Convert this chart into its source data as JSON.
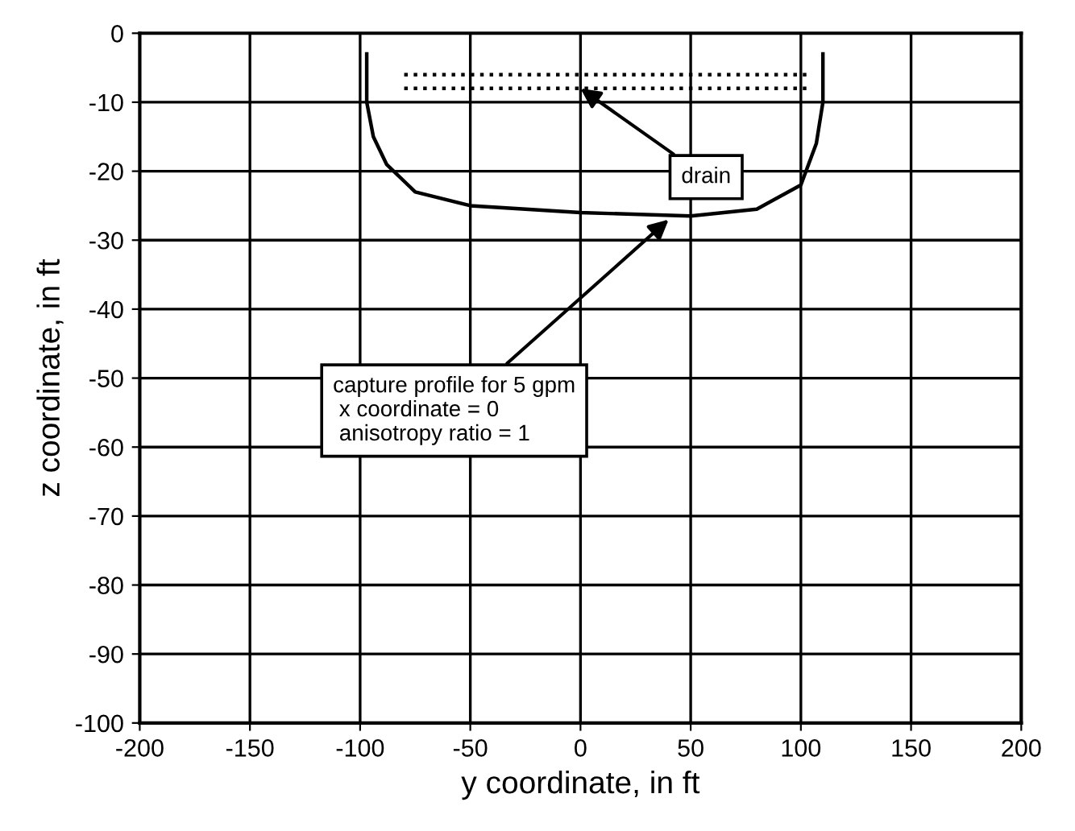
{
  "chart_data": {
    "type": "line",
    "xlabel": "y coordinate, in ft",
    "ylabel": "z coordinate, in ft",
    "xlim": [
      -200,
      200
    ],
    "ylim": [
      -100,
      0
    ],
    "xticks": [
      -200,
      -150,
      -100,
      -50,
      0,
      50,
      100,
      150,
      200
    ],
    "yticks": [
      0,
      -10,
      -20,
      -30,
      -40,
      -50,
      -60,
      -70,
      -80,
      -90,
      -100
    ],
    "grid": true,
    "marker": "none",
    "series": [
      {
        "color": "#000000",
        "line_style": "solid",
        "x": [
          -97,
          -97,
          -94,
          -88,
          -75,
          -50,
          0,
          50,
          80,
          100,
          107,
          110,
          110
        ],
        "values": [
          -3,
          -10,
          -15,
          -19,
          -23,
          -25,
          -26,
          -26.5,
          -25.5,
          -22,
          -16,
          -10,
          -3
        ]
      },
      {
        "color": "#000000",
        "line_style": "dotted",
        "x": [
          -80,
          105
        ],
        "values": [
          -6,
          -6
        ]
      },
      {
        "color": "#000000",
        "line_style": "dotted",
        "x": [
          -80,
          105
        ],
        "values": [
          -8,
          -8
        ]
      }
    ],
    "annotations": [
      {
        "text": "drain",
        "x": 0,
        "y": -8
      },
      {
        "text": "capture profile for 5 gpm\n x coordinate = 0\n anisotropy ratio = 1",
        "x": 40,
        "y": -27
      }
    ]
  }
}
